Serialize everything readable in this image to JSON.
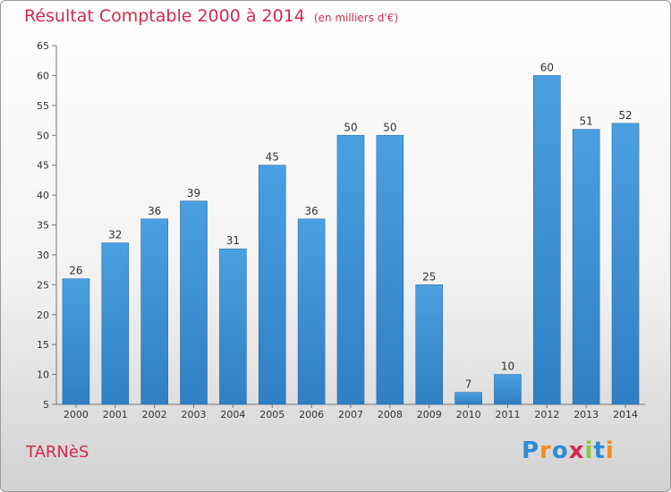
{
  "title": "Résultat Comptable 2000 à 2014",
  "unit_note": "(en milliers d'€)",
  "region": "TARNèS",
  "logo": {
    "text": "Proxiti",
    "letter_colors": [
      "#2e8bd6",
      "#f28c1e",
      "#2e8bd6",
      "#d5284d",
      "#8cc63f",
      "#2e8bd6",
      "#f28c1e"
    ]
  },
  "colors": {
    "bar": "#4aa0e0",
    "bar_dark": "#2f7fc4",
    "title": "#d5284d"
  },
  "chart_data": {
    "type": "bar",
    "categories": [
      "2000",
      "2001",
      "2002",
      "2003",
      "2004",
      "2005",
      "2006",
      "2007",
      "2008",
      "2009",
      "2010",
      "2011",
      "2012",
      "2013",
      "2014"
    ],
    "values": [
      26,
      32,
      36,
      39,
      31,
      45,
      36,
      50,
      50,
      25,
      7,
      10,
      60,
      51,
      52
    ],
    "title": "Résultat Comptable 2000 à 2014",
    "xlabel": "",
    "ylabel": "",
    "ylim": [
      5,
      65
    ],
    "yticks": [
      5,
      10,
      15,
      20,
      25,
      30,
      35,
      40,
      45,
      50,
      55,
      60,
      65
    ],
    "grid": false
  }
}
